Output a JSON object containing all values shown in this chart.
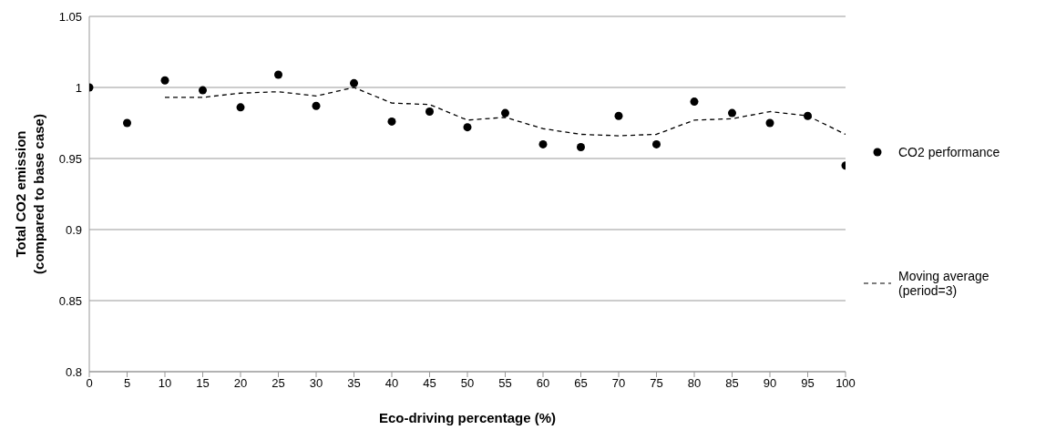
{
  "chart_data": {
    "type": "scatter",
    "xlabel": "Eco-driving percentage (%)",
    "ylabel": "Total CO2 emission (compared to base case)",
    "x": [
      0,
      5,
      10,
      15,
      20,
      25,
      30,
      35,
      40,
      45,
      50,
      55,
      60,
      65,
      70,
      75,
      80,
      85,
      90,
      95,
      100
    ],
    "series": [
      {
        "name": "CO2 performance",
        "color": "#000000",
        "marker": "circle",
        "values": [
          1.0,
          0.975,
          1.005,
          0.998,
          0.986,
          1.009,
          0.987,
          1.003,
          0.976,
          0.983,
          0.972,
          0.982,
          0.96,
          0.958,
          0.98,
          0.96,
          0.99,
          0.982,
          0.975,
          0.98,
          0.945
        ]
      },
      {
        "name": "Moving average (period=3)",
        "type": "line",
        "color": "#000000",
        "marker": "none",
        "line_style": "dashed",
        "x": [
          10,
          15,
          20,
          25,
          30,
          35,
          40,
          45,
          50,
          55,
          60,
          65,
          70,
          75,
          80,
          85,
          90,
          95,
          100
        ],
        "values": [
          0.993,
          0.993,
          0.996,
          0.997,
          0.994,
          1.0,
          0.989,
          0.988,
          0.977,
          0.979,
          0.971,
          0.967,
          0.966,
          0.967,
          0.977,
          0.978,
          0.983,
          0.98,
          0.967
        ]
      }
    ],
    "xlim": [
      0,
      100
    ],
    "xticks": [
      0,
      5,
      10,
      15,
      20,
      25,
      30,
      35,
      40,
      45,
      50,
      55,
      60,
      65,
      70,
      75,
      80,
      85,
      90,
      95,
      100
    ],
    "ylim": [
      0.8,
      1.05
    ],
    "yticks": [
      0.8,
      0.85,
      0.9,
      0.95,
      1,
      1.05
    ],
    "grid": "y",
    "legend": "right"
  }
}
